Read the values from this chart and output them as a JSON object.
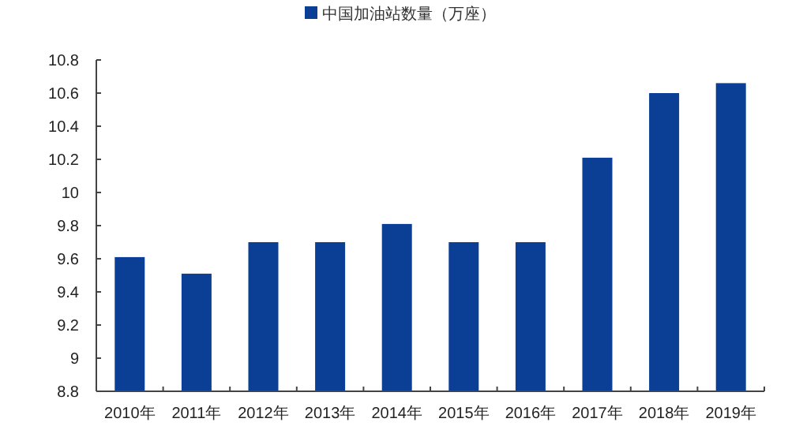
{
  "chart_data": {
    "type": "bar",
    "categories": [
      "2010年",
      "2011年",
      "2012年",
      "2013年",
      "2014年",
      "2015年",
      "2016年",
      "2017年",
      "2018年",
      "2019年"
    ],
    "series": [
      {
        "name": "中国加油站数量（万座）",
        "color": "#0b3f96",
        "values": [
          9.61,
          9.51,
          9.7,
          9.7,
          9.81,
          9.7,
          9.7,
          10.21,
          10.6,
          10.66
        ]
      }
    ],
    "ylim": [
      8.8,
      10.8
    ],
    "yticks": [
      8.8,
      9,
      9.2,
      9.4,
      9.6,
      9.8,
      10,
      10.2,
      10.4,
      10.6,
      10.8
    ],
    "legend": "top",
    "grid": false
  }
}
